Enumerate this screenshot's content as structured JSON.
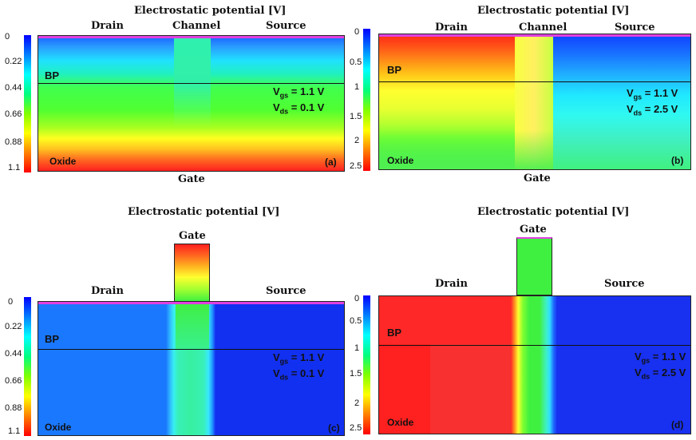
{
  "colormap": [
    "#0000ff",
    "#0080ff",
    "#00ffff",
    "#00ff80",
    "#80ff00",
    "#ffff00",
    "#ff8000",
    "#ff0000"
  ],
  "panels": {
    "a": {
      "title": "Electrostatic potential [V]",
      "drain": "Drain",
      "channel": "Channel",
      "source": "Source",
      "gate": "Gate",
      "bp": "BP",
      "oxide": "Oxide",
      "tag": "(a)",
      "vgs_sym": "V",
      "vgs_sub": "gs",
      "vgs_val": " = 1.1 V",
      "vds_sym": "V",
      "vds_sub": "ds",
      "vds_val": " = 0.1 V",
      "ticks": [
        "0",
        "0.22",
        "0.44",
        "0.66",
        "0.88",
        "1.1"
      ]
    },
    "b": {
      "title": "Electrostatic potential [V]",
      "drain": "Drain",
      "channel": "Channel",
      "source": "Source",
      "gate": "Gate",
      "bp": "BP",
      "oxide": "Oxide",
      "tag": "(b)",
      "vgs_sym": "V",
      "vgs_sub": "gs",
      "vgs_val": " = 1.1 V",
      "vds_sym": "V",
      "vds_sub": "ds",
      "vds_val": " = 2.5 V",
      "ticks": [
        "0",
        "0.5",
        "1",
        "1.5",
        "2",
        "2.5"
      ]
    },
    "c": {
      "title": "Electrostatic potential [V]",
      "drain": "Drain",
      "source": "Source",
      "gate": "Gate",
      "bp": "BP",
      "oxide": "Oxide",
      "tag": "(c)",
      "vgs_sym": "V",
      "vgs_sub": "gs",
      "vgs_val": " = 1.1 V",
      "vds_sym": "V",
      "vds_sub": "ds",
      "vds_val": " = 0.1 V",
      "ticks": [
        "0",
        "0.22",
        "0.44",
        "0.66",
        "0.88",
        "1.1"
      ]
    },
    "d": {
      "title": "Electrostatic potential [V]",
      "drain": "Drain",
      "source": "Source",
      "gate": "Gate",
      "bp": "BP",
      "oxide": "Oxide",
      "tag": "(d)",
      "vgs_sym": "V",
      "vgs_sub": "gs",
      "vgs_val": " = 1.1 V",
      "vds_sym": "V",
      "vds_sub": "ds",
      "vds_val": " = 2.5 V",
      "ticks": [
        "0",
        "0.5",
        "1",
        "1.5",
        "2",
        "2.5"
      ]
    }
  }
}
